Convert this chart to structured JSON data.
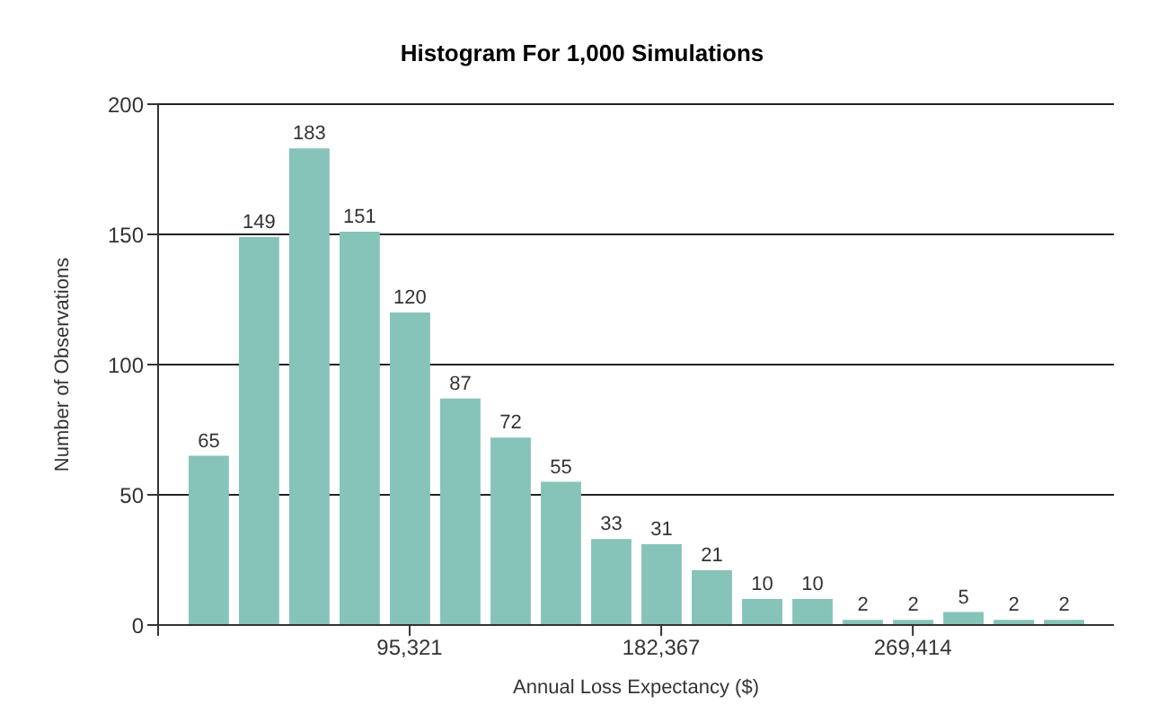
{
  "chart_data": {
    "type": "histogram",
    "title": "Histogram For 1,000 Simulations",
    "xlabel": "Annual Loss Expectancy ($)",
    "ylabel": "Number of Observations",
    "bins": [
      16979,
      34388,
      51797,
      69206,
      86615,
      104024,
      121433,
      138842,
      156251,
      173660,
      191069,
      208478,
      225887,
      243296,
      260705,
      278114,
      295523,
      312932,
      330341
    ],
    "values": [
      65,
      149,
      183,
      151,
      120,
      87,
      72,
      55,
      33,
      31,
      21,
      10,
      10,
      2,
      2,
      5,
      2,
      2
    ],
    "color": "#86c3b8",
    "xlim": [
      8274,
      339000
    ],
    "xticks": [
      {
        "value": 8274,
        "label": null
      },
      {
        "value": 95321,
        "label": "95,321"
      },
      {
        "value": 182367,
        "label": "182,367"
      },
      {
        "value": 269414,
        "label": "269,414"
      }
    ],
    "ylim": [
      0,
      200
    ],
    "yticks": [
      0,
      50,
      100,
      150,
      200
    ],
    "grid": "y",
    "data_labels": true
  }
}
